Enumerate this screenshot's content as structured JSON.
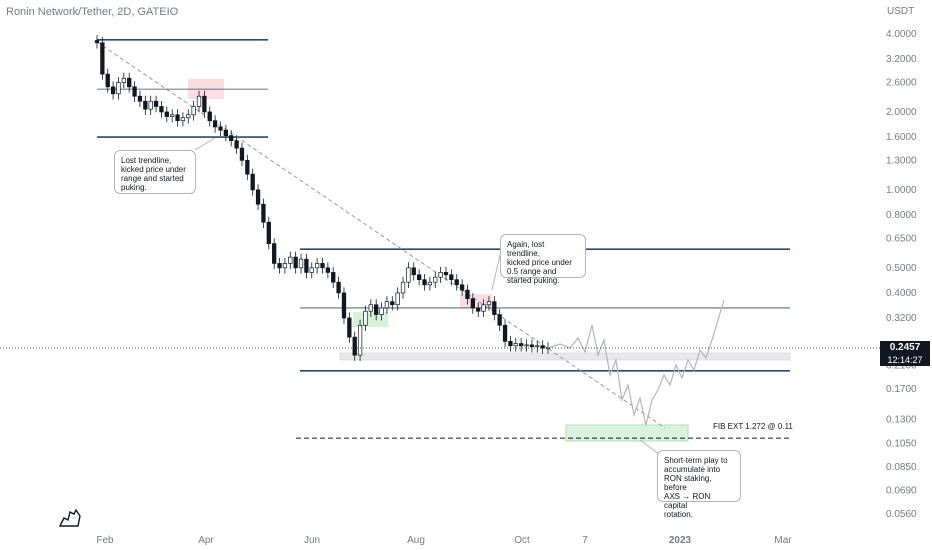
{
  "header": {
    "title": "Ronin Network/Tether, 2D, GATEIO"
  },
  "currency": "USDT",
  "price_tag": {
    "price": "0.2457",
    "countdown": "12:14:27"
  },
  "annotations": [
    {
      "id": "note1",
      "text": "Lost trendline,\nkicked price under\nrange and started\npuking."
    },
    {
      "id": "note2",
      "text": "Again, lost trendline,\nkicked price under\n0.5 range and\nstarted puking."
    },
    {
      "id": "note3",
      "text": "Short-term play to\naccumulate into\nRON staking, before\nAXS → RON capital\nrotation."
    }
  ],
  "fib_label": "FIB EXT 1.272 @ 0.11",
  "colors": {
    "up": "#089981",
    "down": "#131722",
    "range": "#2a4a6b",
    "zone_red": "#f7c8cc",
    "zone_green": "#cdeccf",
    "bg": "#ffffff"
  },
  "chart_data": {
    "type": "candlestick",
    "title": "Ronin Network/Tether, 2D, GATEIO",
    "y_scale": "log",
    "y_ticks": [
      "4.0000",
      "3.2000",
      "2.6000",
      "2.0000",
      "1.6000",
      "1.3000",
      "1.0000",
      "0.8000",
      "0.6500",
      "0.5000",
      "0.4000",
      "0.3200",
      "0.2100",
      "0.1700",
      "0.1300",
      "0.1050",
      "0.0850",
      "0.0690",
      "0.0560"
    ],
    "x_ticks": [
      "Feb",
      "Apr",
      "Jun",
      "Aug",
      "Oct",
      "7",
      "2023",
      "Mar"
    ],
    "last_price": 0.2457,
    "range_levels": [
      3.8,
      2.45,
      1.6,
      0.59,
      0.35,
      0.2
    ],
    "fib_ext": 0.11,
    "closes": [
      3.7,
      2.8,
      2.5,
      2.35,
      2.6,
      2.7,
      2.5,
      2.3,
      2.2,
      2.05,
      2.2,
      2.1,
      2.0,
      1.92,
      1.95,
      1.85,
      1.9,
      1.95,
      2.1,
      2.3,
      2.0,
      1.85,
      1.75,
      1.7,
      1.62,
      1.55,
      1.45,
      1.3,
      1.15,
      1.0,
      0.88,
      0.75,
      0.62,
      0.52,
      0.5,
      0.52,
      0.55,
      0.5,
      0.54,
      0.48,
      0.5,
      0.52,
      0.5,
      0.48,
      0.44,
      0.4,
      0.32,
      0.27,
      0.23,
      0.3,
      0.34,
      0.36,
      0.33,
      0.35,
      0.37,
      0.36,
      0.4,
      0.44,
      0.5,
      0.47,
      0.45,
      0.43,
      0.44,
      0.46,
      0.48,
      0.47,
      0.45,
      0.43,
      0.41,
      0.38,
      0.35,
      0.34,
      0.36,
      0.37,
      0.33,
      0.3,
      0.26,
      0.25,
      0.255,
      0.25,
      0.252,
      0.248,
      0.25,
      0.245,
      0.2457
    ]
  }
}
